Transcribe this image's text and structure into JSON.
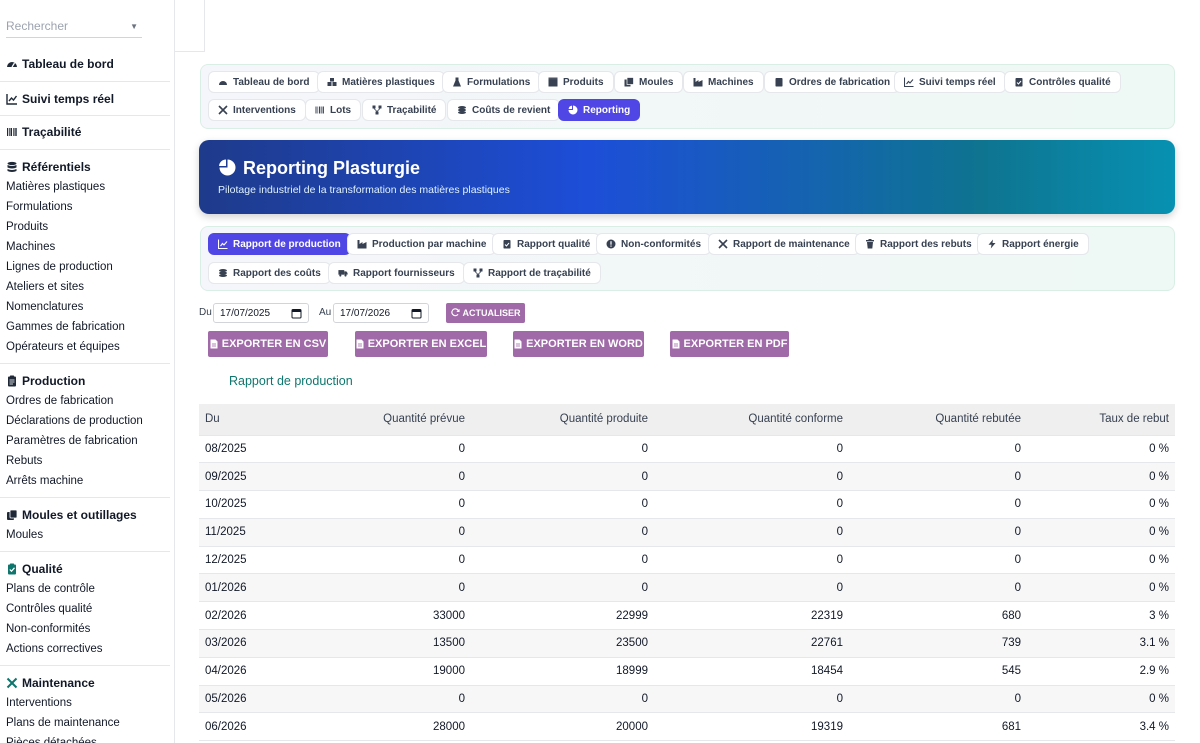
{
  "sidebar": {
    "search_placeholder": "Rechercher",
    "dashboard": "Tableau de bord",
    "realtime": "Suivi temps réel",
    "traceability": "Traçabilité",
    "referentiels": {
      "title": "Référentiels",
      "items": [
        "Matières plastiques",
        "Formulations",
        "Produits",
        "Machines",
        "Lignes de production",
        "Ateliers et sites",
        "Nomenclatures",
        "Gammes de fabrication",
        "Opérateurs et équipes"
      ]
    },
    "production": {
      "title": "Production",
      "items": [
        "Ordres de fabrication",
        "Déclarations de production",
        "Paramètres de fabrication",
        "Rebuts",
        "Arrêts machine"
      ]
    },
    "moules": {
      "title": "Moules et outillages",
      "items": [
        "Moules"
      ]
    },
    "qualite": {
      "title": "Qualité",
      "items": [
        "Plans de contrôle",
        "Contrôles qualité",
        "Non-conformités",
        "Actions correctives"
      ]
    },
    "maintenance": {
      "title": "Maintenance",
      "items": [
        "Interventions",
        "Plans de maintenance",
        "Pièces détachées"
      ]
    }
  },
  "nav": {
    "tabs": [
      "Tableau de bord",
      "Matières plastiques",
      "Formulations",
      "Produits",
      "Moules",
      "Machines",
      "Ordres de fabrication",
      "Suivi temps réel",
      "Contrôles qualité",
      "Interventions",
      "Lots",
      "Traçabilité",
      "Coûts de revient",
      "Reporting"
    ],
    "active": "Reporting"
  },
  "banner": {
    "title": "Reporting Plasturgie",
    "subtitle": "Pilotage industriel de la transformation des matières plastiques"
  },
  "report_tabs": {
    "tabs": [
      "Rapport de production",
      "Production par machine",
      "Rapport qualité",
      "Non-conformités",
      "Rapport de maintenance",
      "Rapport des rebuts",
      "Rapport énergie",
      "Rapport des coûts",
      "Rapport fournisseurs",
      "Rapport de traçabilité"
    ],
    "active": "Rapport de production"
  },
  "filters": {
    "from_label": "Du",
    "from_value": "17/07/2025",
    "to_label": "Au",
    "to_value": "17/07/2026",
    "refresh": "ACTUALISER"
  },
  "exports": {
    "csv": "EXPORTER EN CSV",
    "excel": "EXPORTER EN EXCEL",
    "word": "EXPORTER EN WORD",
    "pdf": "EXPORTER EN PDF"
  },
  "report": {
    "title": "Rapport de production",
    "columns": [
      "Du",
      "Quantité prévue",
      "Quantité produite",
      "Quantité conforme",
      "Quantité rebutée",
      "Taux de rebut"
    ],
    "rows": [
      [
        "08/2025",
        "0",
        "0",
        "0",
        "0",
        "0 %"
      ],
      [
        "09/2025",
        "0",
        "0",
        "0",
        "0",
        "0 %"
      ],
      [
        "10/2025",
        "0",
        "0",
        "0",
        "0",
        "0 %"
      ],
      [
        "11/2025",
        "0",
        "0",
        "0",
        "0",
        "0 %"
      ],
      [
        "12/2025",
        "0",
        "0",
        "0",
        "0",
        "0 %"
      ],
      [
        "01/2026",
        "0",
        "0",
        "0",
        "0",
        "0 %"
      ],
      [
        "02/2026",
        "33000",
        "22999",
        "22319",
        "680",
        "3 %"
      ],
      [
        "03/2026",
        "13500",
        "23500",
        "22761",
        "739",
        "3.1 %"
      ],
      [
        "04/2026",
        "19000",
        "18999",
        "18454",
        "545",
        "2.9 %"
      ],
      [
        "05/2026",
        "0",
        "0",
        "0",
        "0",
        "0 %"
      ],
      [
        "06/2026",
        "28000",
        "20000",
        "19319",
        "681",
        "3.4 %"
      ]
    ]
  },
  "colors": {
    "accent": "#4f46e5",
    "export_button": "#a069a8",
    "report_title": "#0f766e"
  }
}
